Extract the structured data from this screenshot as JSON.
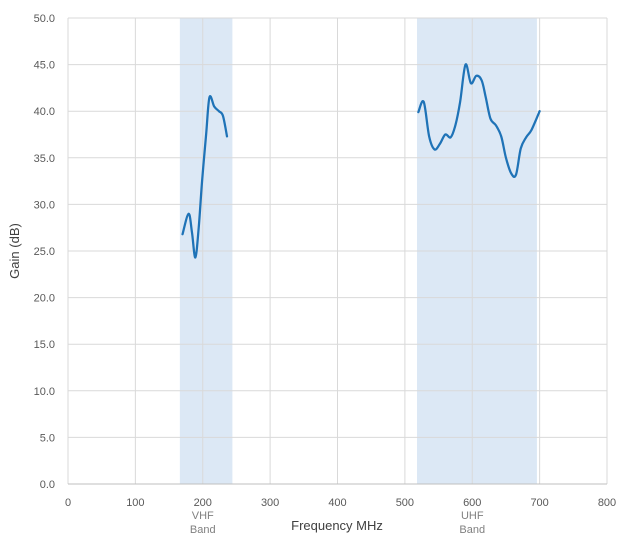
{
  "chart_data": {
    "type": "line",
    "title": "",
    "xlabel": "Frequency MHz",
    "ylabel": "Gain (dB)",
    "xlim": [
      0,
      800
    ],
    "ylim": [
      0,
      50
    ],
    "x_ticks": [
      0,
      100,
      200,
      300,
      400,
      500,
      600,
      700,
      800
    ],
    "y_ticks": [
      "0.0",
      "5.0",
      "10.0",
      "15.0",
      "20.0",
      "25.0",
      "30.0",
      "35.0",
      "40.0",
      "45.0",
      "50.0"
    ],
    "grid": true,
    "legend": "none",
    "bands": [
      {
        "label_lines": [
          "VHF",
          "Band"
        ],
        "x_start": 166,
        "x_end": 244,
        "label_x": 200,
        "color": "#dce8f5"
      },
      {
        "label_lines": [
          "UHF",
          "Band"
        ],
        "x_start": 518,
        "x_end": 696,
        "label_x": 600,
        "color": "#dce8f5"
      }
    ],
    "series": [
      {
        "color": "#1f73b7",
        "segments": [
          [
            {
              "x": 170,
              "y": 26.8
            },
            {
              "x": 179,
              "y": 29.0
            },
            {
              "x": 184,
              "y": 27.0
            },
            {
              "x": 189,
              "y": 24.3
            },
            {
              "x": 194,
              "y": 27.5
            },
            {
              "x": 199,
              "y": 32.5
            },
            {
              "x": 205,
              "y": 37.5
            },
            {
              "x": 210,
              "y": 41.5
            },
            {
              "x": 217,
              "y": 40.5
            },
            {
              "x": 224,
              "y": 40.0
            },
            {
              "x": 230,
              "y": 39.5
            },
            {
              "x": 236,
              "y": 37.3
            }
          ],
          [
            {
              "x": 520,
              "y": 39.9
            },
            {
              "x": 528,
              "y": 41.0
            },
            {
              "x": 536,
              "y": 37.3
            },
            {
              "x": 544,
              "y": 35.9
            },
            {
              "x": 552,
              "y": 36.5
            },
            {
              "x": 560,
              "y": 37.5
            },
            {
              "x": 568,
              "y": 37.2
            },
            {
              "x": 575,
              "y": 38.5
            },
            {
              "x": 582,
              "y": 41.0
            },
            {
              "x": 590,
              "y": 45.0
            },
            {
              "x": 598,
              "y": 43.0
            },
            {
              "x": 606,
              "y": 43.8
            },
            {
              "x": 614,
              "y": 43.3
            },
            {
              "x": 620,
              "y": 41.5
            },
            {
              "x": 627,
              "y": 39.2
            },
            {
              "x": 635,
              "y": 38.5
            },
            {
              "x": 643,
              "y": 37.3
            },
            {
              "x": 650,
              "y": 35.0
            },
            {
              "x": 658,
              "y": 33.3
            },
            {
              "x": 665,
              "y": 33.2
            },
            {
              "x": 672,
              "y": 36.0
            },
            {
              "x": 680,
              "y": 37.2
            },
            {
              "x": 688,
              "y": 38.0
            },
            {
              "x": 700,
              "y": 40.0
            }
          ]
        ]
      }
    ]
  }
}
